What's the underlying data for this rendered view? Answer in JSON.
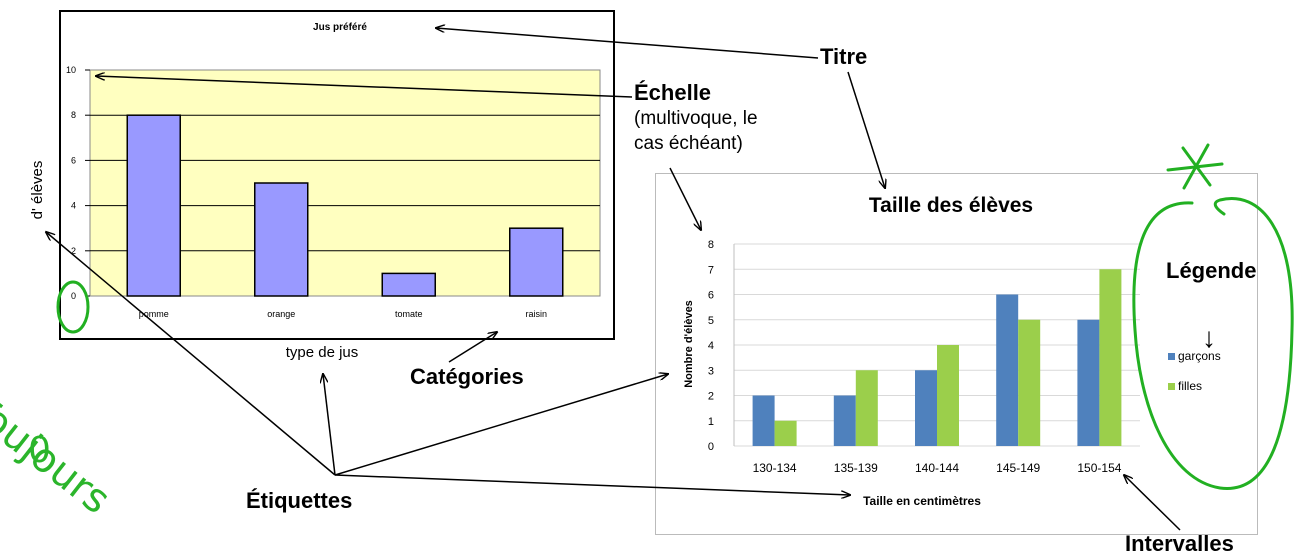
{
  "chart_data": [
    {
      "type": "bar",
      "title": "Jus préféré",
      "xlabel": "type de jus",
      "ylabel": "d' élèves",
      "categories": [
        "pomme",
        "orange",
        "tomate",
        "raisin"
      ],
      "values": [
        8,
        5,
        1,
        3
      ],
      "ylim": [
        0,
        10
      ],
      "yticks": [
        0,
        2,
        4,
        6,
        8,
        10
      ],
      "grid": true,
      "colors": {
        "bar": "#9999ff",
        "plot_bg": "#ffffc0"
      }
    },
    {
      "type": "bar",
      "title": "Taille des élèves",
      "xlabel": "Taille en centimètres",
      "ylabel": "Nombre d'élèves",
      "categories": [
        "130-134",
        "135-139",
        "140-144",
        "145-149",
        "150-154"
      ],
      "series": [
        {
          "name": "garçons",
          "values": [
            2,
            2,
            3,
            6,
            5
          ],
          "color": "#4f81bd"
        },
        {
          "name": "filles",
          "values": [
            1,
            3,
            4,
            5,
            7
          ],
          "color": "#9bcf4b"
        }
      ],
      "ylim": [
        0,
        8
      ],
      "yticks": [
        0,
        1,
        2,
        3,
        4,
        5,
        6,
        7,
        8
      ],
      "grid": true,
      "legend": "right"
    }
  ],
  "annotations": {
    "titre": "Titre",
    "echelle": "Échelle",
    "echelle_note_line1": "(multivoque, le",
    "echelle_note_line2": "cas échéant)",
    "categories": "Catégories",
    "etiquettes": "Étiquettes",
    "legende": "Légende",
    "intervalles": "Intervalles",
    "toujours": "Toujours",
    "zero": "0",
    "asterisk": "*",
    "down_arrow": "↓"
  }
}
